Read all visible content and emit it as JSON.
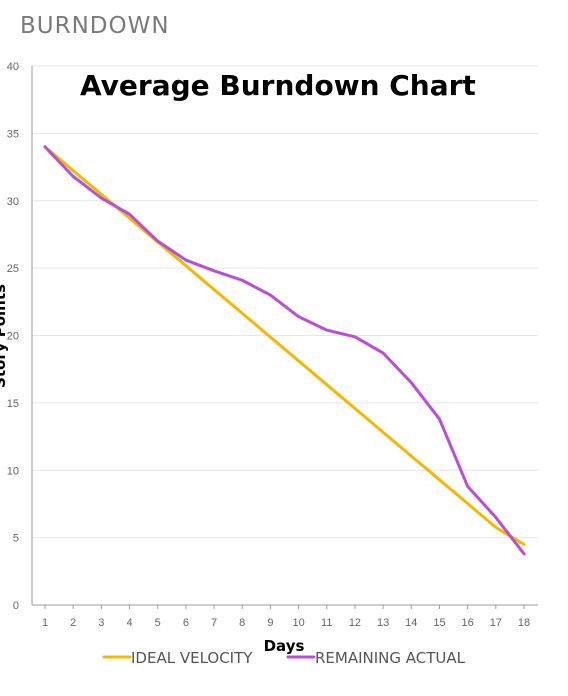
{
  "page": {
    "heading": "BURNDOWN"
  },
  "chart_data": {
    "type": "line",
    "title": "Average Burndown Chart",
    "xlabel": "Days",
    "ylabel": "Story Points",
    "x": [
      1,
      2,
      3,
      4,
      5,
      6,
      7,
      8,
      9,
      10,
      11,
      12,
      13,
      14,
      15,
      16,
      17,
      18
    ],
    "ylim": [
      0,
      40
    ],
    "yticks": [
      0,
      5,
      10,
      15,
      20,
      25,
      30,
      35,
      40
    ],
    "grid": true,
    "legend_position": "bottom",
    "series": [
      {
        "name": "IDEAL VELOCITY",
        "color": "#f5b800",
        "values": [
          34,
          32.24,
          30.47,
          28.71,
          26.94,
          25.18,
          23.41,
          21.65,
          19.88,
          18.12,
          16.35,
          14.59,
          12.82,
          11.06,
          9.29,
          7.53,
          5.76,
          4.5
        ]
      },
      {
        "name": "REMAINING ACTUAL",
        "color": "#b94fd4",
        "values": [
          34,
          31.8,
          30.2,
          29,
          27,
          25.6,
          24.8,
          24.1,
          23,
          21.4,
          20.4,
          19.9,
          18.7,
          16.5,
          13.8,
          8.8,
          6.5,
          3.8
        ]
      }
    ]
  }
}
